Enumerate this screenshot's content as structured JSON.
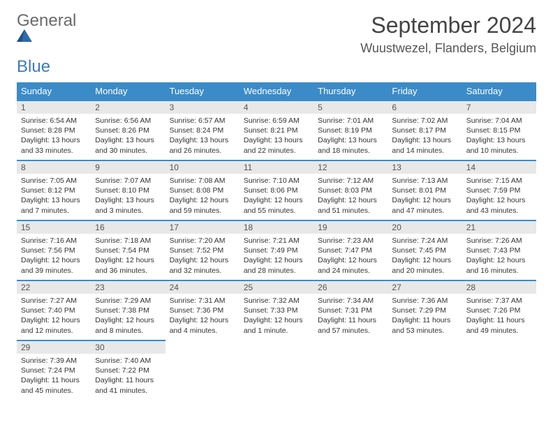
{
  "brand": {
    "general": "General",
    "blue": "Blue"
  },
  "title": "September 2024",
  "location": "Wuustwezel, Flanders, Belgium",
  "colors": {
    "header_bg": "#3b8bc9",
    "header_text": "#ffffff",
    "day_bar_bg": "#e8e8e8",
    "day_bar_border": "#3b8bc9",
    "body_text": "#333333",
    "logo_gray": "#6a6a6a",
    "logo_blue": "#3b7bbf"
  },
  "weekdays": [
    "Sunday",
    "Monday",
    "Tuesday",
    "Wednesday",
    "Thursday",
    "Friday",
    "Saturday"
  ],
  "weeks": [
    [
      {
        "day": "1",
        "sunrise": "Sunrise: 6:54 AM",
        "sunset": "Sunset: 8:28 PM",
        "daylight": "Daylight: 13 hours and 33 minutes."
      },
      {
        "day": "2",
        "sunrise": "Sunrise: 6:56 AM",
        "sunset": "Sunset: 8:26 PM",
        "daylight": "Daylight: 13 hours and 30 minutes."
      },
      {
        "day": "3",
        "sunrise": "Sunrise: 6:57 AM",
        "sunset": "Sunset: 8:24 PM",
        "daylight": "Daylight: 13 hours and 26 minutes."
      },
      {
        "day": "4",
        "sunrise": "Sunrise: 6:59 AM",
        "sunset": "Sunset: 8:21 PM",
        "daylight": "Daylight: 13 hours and 22 minutes."
      },
      {
        "day": "5",
        "sunrise": "Sunrise: 7:01 AM",
        "sunset": "Sunset: 8:19 PM",
        "daylight": "Daylight: 13 hours and 18 minutes."
      },
      {
        "day": "6",
        "sunrise": "Sunrise: 7:02 AM",
        "sunset": "Sunset: 8:17 PM",
        "daylight": "Daylight: 13 hours and 14 minutes."
      },
      {
        "day": "7",
        "sunrise": "Sunrise: 7:04 AM",
        "sunset": "Sunset: 8:15 PM",
        "daylight": "Daylight: 13 hours and 10 minutes."
      }
    ],
    [
      {
        "day": "8",
        "sunrise": "Sunrise: 7:05 AM",
        "sunset": "Sunset: 8:12 PM",
        "daylight": "Daylight: 13 hours and 7 minutes."
      },
      {
        "day": "9",
        "sunrise": "Sunrise: 7:07 AM",
        "sunset": "Sunset: 8:10 PM",
        "daylight": "Daylight: 13 hours and 3 minutes."
      },
      {
        "day": "10",
        "sunrise": "Sunrise: 7:08 AM",
        "sunset": "Sunset: 8:08 PM",
        "daylight": "Daylight: 12 hours and 59 minutes."
      },
      {
        "day": "11",
        "sunrise": "Sunrise: 7:10 AM",
        "sunset": "Sunset: 8:06 PM",
        "daylight": "Daylight: 12 hours and 55 minutes."
      },
      {
        "day": "12",
        "sunrise": "Sunrise: 7:12 AM",
        "sunset": "Sunset: 8:03 PM",
        "daylight": "Daylight: 12 hours and 51 minutes."
      },
      {
        "day": "13",
        "sunrise": "Sunrise: 7:13 AM",
        "sunset": "Sunset: 8:01 PM",
        "daylight": "Daylight: 12 hours and 47 minutes."
      },
      {
        "day": "14",
        "sunrise": "Sunrise: 7:15 AM",
        "sunset": "Sunset: 7:59 PM",
        "daylight": "Daylight: 12 hours and 43 minutes."
      }
    ],
    [
      {
        "day": "15",
        "sunrise": "Sunrise: 7:16 AM",
        "sunset": "Sunset: 7:56 PM",
        "daylight": "Daylight: 12 hours and 39 minutes."
      },
      {
        "day": "16",
        "sunrise": "Sunrise: 7:18 AM",
        "sunset": "Sunset: 7:54 PM",
        "daylight": "Daylight: 12 hours and 36 minutes."
      },
      {
        "day": "17",
        "sunrise": "Sunrise: 7:20 AM",
        "sunset": "Sunset: 7:52 PM",
        "daylight": "Daylight: 12 hours and 32 minutes."
      },
      {
        "day": "18",
        "sunrise": "Sunrise: 7:21 AM",
        "sunset": "Sunset: 7:49 PM",
        "daylight": "Daylight: 12 hours and 28 minutes."
      },
      {
        "day": "19",
        "sunrise": "Sunrise: 7:23 AM",
        "sunset": "Sunset: 7:47 PM",
        "daylight": "Daylight: 12 hours and 24 minutes."
      },
      {
        "day": "20",
        "sunrise": "Sunrise: 7:24 AM",
        "sunset": "Sunset: 7:45 PM",
        "daylight": "Daylight: 12 hours and 20 minutes."
      },
      {
        "day": "21",
        "sunrise": "Sunrise: 7:26 AM",
        "sunset": "Sunset: 7:43 PM",
        "daylight": "Daylight: 12 hours and 16 minutes."
      }
    ],
    [
      {
        "day": "22",
        "sunrise": "Sunrise: 7:27 AM",
        "sunset": "Sunset: 7:40 PM",
        "daylight": "Daylight: 12 hours and 12 minutes."
      },
      {
        "day": "23",
        "sunrise": "Sunrise: 7:29 AM",
        "sunset": "Sunset: 7:38 PM",
        "daylight": "Daylight: 12 hours and 8 minutes."
      },
      {
        "day": "24",
        "sunrise": "Sunrise: 7:31 AM",
        "sunset": "Sunset: 7:36 PM",
        "daylight": "Daylight: 12 hours and 4 minutes."
      },
      {
        "day": "25",
        "sunrise": "Sunrise: 7:32 AM",
        "sunset": "Sunset: 7:33 PM",
        "daylight": "Daylight: 12 hours and 1 minute."
      },
      {
        "day": "26",
        "sunrise": "Sunrise: 7:34 AM",
        "sunset": "Sunset: 7:31 PM",
        "daylight": "Daylight: 11 hours and 57 minutes."
      },
      {
        "day": "27",
        "sunrise": "Sunrise: 7:36 AM",
        "sunset": "Sunset: 7:29 PM",
        "daylight": "Daylight: 11 hours and 53 minutes."
      },
      {
        "day": "28",
        "sunrise": "Sunrise: 7:37 AM",
        "sunset": "Sunset: 7:26 PM",
        "daylight": "Daylight: 11 hours and 49 minutes."
      }
    ],
    [
      {
        "day": "29",
        "sunrise": "Sunrise: 7:39 AM",
        "sunset": "Sunset: 7:24 PM",
        "daylight": "Daylight: 11 hours and 45 minutes."
      },
      {
        "day": "30",
        "sunrise": "Sunrise: 7:40 AM",
        "sunset": "Sunset: 7:22 PM",
        "daylight": "Daylight: 11 hours and 41 minutes."
      },
      null,
      null,
      null,
      null,
      null
    ]
  ]
}
